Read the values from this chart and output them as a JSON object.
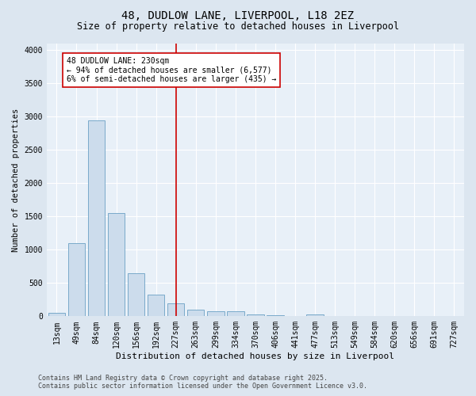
{
  "title1": "48, DUDLOW LANE, LIVERPOOL, L18 2EZ",
  "title2": "Size of property relative to detached houses in Liverpool",
  "xlabel": "Distribution of detached houses by size in Liverpool",
  "ylabel": "Number of detached properties",
  "categories": [
    "13sqm",
    "49sqm",
    "84sqm",
    "120sqm",
    "156sqm",
    "192sqm",
    "227sqm",
    "263sqm",
    "299sqm",
    "334sqm",
    "370sqm",
    "406sqm",
    "441sqm",
    "477sqm",
    "513sqm",
    "549sqm",
    "584sqm",
    "620sqm",
    "656sqm",
    "691sqm",
    "727sqm"
  ],
  "values": [
    50,
    1100,
    2950,
    1550,
    650,
    330,
    200,
    100,
    80,
    80,
    30,
    10,
    5,
    30,
    5,
    2,
    2,
    2,
    2,
    2,
    2
  ],
  "bar_color": "#ccdcec",
  "bar_edge_color": "#7aaaca",
  "vline_x_index": 6,
  "vline_color": "#cc0000",
  "annotation_title": "48 DUDLOW LANE: 230sqm",
  "annotation_line1": "← 94% of detached houses are smaller (6,577)",
  "annotation_line2": "6% of semi-detached houses are larger (435) →",
  "annotation_box_facecolor": "#ffffff",
  "annotation_box_edgecolor": "#cc0000",
  "ylim": [
    0,
    4100
  ],
  "yticks": [
    0,
    500,
    1000,
    1500,
    2000,
    2500,
    3000,
    3500,
    4000
  ],
  "footer_line1": "Contains HM Land Registry data © Crown copyright and database right 2025.",
  "footer_line2": "Contains public sector information licensed under the Open Government Licence v3.0.",
  "bg_color": "#dce6f0",
  "plot_bg_color": "#e8f0f8",
  "grid_color": "#ffffff",
  "title1_fontsize": 10,
  "title2_fontsize": 8.5,
  "xlabel_fontsize": 8,
  "ylabel_fontsize": 7.5,
  "tick_fontsize": 7,
  "ann_fontsize": 7,
  "footer_fontsize": 6
}
